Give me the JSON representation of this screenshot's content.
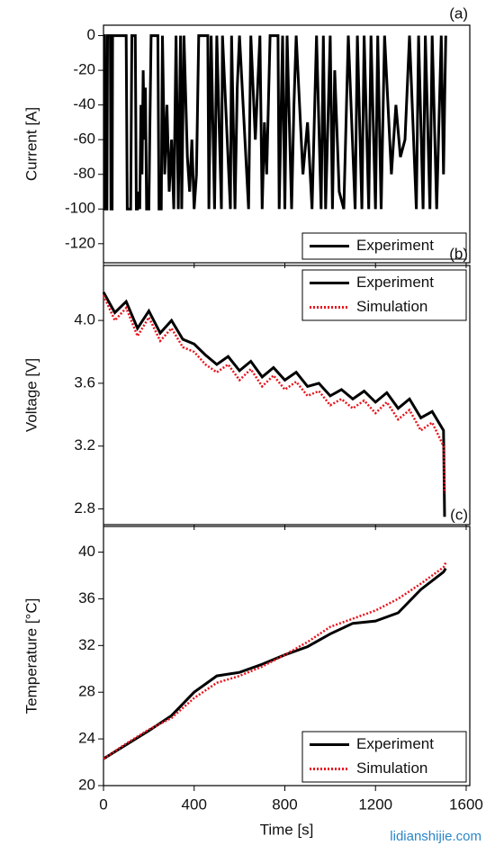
{
  "watermark": "lidianshijie.com",
  "chart_data": [
    {
      "type": "line",
      "panel_label": "(a)",
      "ylabel": "Current [A]",
      "xlim": [
        0,
        1616
      ],
      "xticks": [
        0,
        400,
        800,
        1200,
        1600
      ],
      "ylim": [
        -131,
        6
      ],
      "yticks": [
        0,
        -20,
        -40,
        -60,
        -80,
        -100,
        -120
      ],
      "legend": "lower right",
      "x": [
        0,
        5,
        8,
        15,
        18,
        30,
        33,
        38,
        40,
        100,
        105,
        120,
        125,
        140,
        145,
        150,
        155,
        160,
        165,
        170,
        175,
        180,
        185,
        190,
        200,
        205,
        210,
        240,
        245,
        255,
        260,
        270,
        280,
        290,
        300,
        310,
        320,
        330,
        340,
        345,
        355,
        370,
        380,
        390,
        400,
        410,
        420,
        460,
        465,
        475,
        490,
        500,
        520,
        525,
        560,
        565,
        580,
        590,
        600,
        640,
        650,
        670,
        690,
        700,
        710,
        720,
        735,
        770,
        775,
        790,
        800,
        810,
        830,
        840,
        850,
        880,
        900,
        920,
        940,
        960,
        970,
        980,
        1000,
        1010,
        1020,
        1040,
        1060,
        1080,
        1110,
        1120,
        1140,
        1150,
        1170,
        1180,
        1200,
        1210,
        1225,
        1240,
        1270,
        1290,
        1310,
        1330,
        1350,
        1380,
        1390,
        1410,
        1420,
        1440,
        1450,
        1470,
        1490,
        1500,
        1505,
        1510
      ],
      "series": [
        {
          "name": "Experiment",
          "color": "#000000",
          "style": "solid",
          "values": [
            0,
            0,
            -100,
            -100,
            0,
            0,
            -100,
            -100,
            0,
            0,
            -100,
            -100,
            0,
            0,
            -100,
            -100,
            -90,
            -100,
            -40,
            -80,
            -20,
            -60,
            -30,
            -100,
            -100,
            -50,
            0,
            0,
            -100,
            -100,
            0,
            -80,
            -40,
            -90,
            -60,
            -100,
            0,
            -100,
            0,
            -100,
            0,
            -70,
            -90,
            -60,
            -100,
            -80,
            0,
            0,
            -100,
            0,
            -100,
            0,
            -100,
            0,
            -100,
            0,
            -100,
            -30,
            0,
            -100,
            0,
            -60,
            0,
            -100,
            -50,
            -80,
            0,
            0,
            -100,
            0,
            -100,
            0,
            -100,
            -40,
            0,
            -80,
            -50,
            -100,
            0,
            -100,
            0,
            -100,
            0,
            -100,
            -20,
            -90,
            -100,
            0,
            -100,
            0,
            -100,
            0,
            -100,
            0,
            -100,
            0,
            -100,
            0,
            -80,
            -40,
            -70,
            -60,
            0,
            -100,
            0,
            -100,
            0,
            -100,
            0,
            -100,
            0,
            -80,
            -40,
            0
          ]
        }
      ]
    },
    {
      "type": "line",
      "panel_label": "(b)",
      "ylabel": "Voltage [V]",
      "xlim": [
        0,
        1616
      ],
      "xticks": [
        0,
        400,
        800,
        1200,
        1600
      ],
      "ylim": [
        2.7,
        4.35
      ],
      "yticks": [
        {
          "value": 2.8,
          "label": "2.8"
        },
        {
          "value": 3.2,
          "label": "3.2"
        },
        {
          "value": 3.6,
          "label": "3.6"
        },
        {
          "value": 4.0,
          "label": "4.0"
        }
      ],
      "legend": "upper right",
      "x": [
        0,
        50,
        100,
        150,
        200,
        250,
        300,
        350,
        400,
        450,
        500,
        550,
        600,
        650,
        700,
        750,
        800,
        850,
        900,
        950,
        1000,
        1050,
        1100,
        1150,
        1200,
        1250,
        1300,
        1350,
        1400,
        1450,
        1500,
        1505
      ],
      "series": [
        {
          "name": "Experiment",
          "color": "#000000",
          "style": "solid",
          "values": [
            4.18,
            4.05,
            4.12,
            3.95,
            4.06,
            3.92,
            4.0,
            3.88,
            3.85,
            3.78,
            3.72,
            3.77,
            3.68,
            3.74,
            3.64,
            3.7,
            3.62,
            3.67,
            3.58,
            3.6,
            3.52,
            3.56,
            3.5,
            3.55,
            3.48,
            3.54,
            3.44,
            3.5,
            3.38,
            3.42,
            3.3,
            2.75
          ]
        },
        {
          "name": "Simulation",
          "color": "#e8141c",
          "style": "dotted",
          "values": [
            4.16,
            4.0,
            4.08,
            3.9,
            4.02,
            3.87,
            3.95,
            3.83,
            3.8,
            3.72,
            3.67,
            3.72,
            3.62,
            3.69,
            3.58,
            3.65,
            3.56,
            3.61,
            3.52,
            3.55,
            3.46,
            3.5,
            3.44,
            3.49,
            3.41,
            3.48,
            3.37,
            3.43,
            3.3,
            3.35,
            3.2,
            2.9
          ]
        }
      ]
    },
    {
      "type": "line",
      "panel_label": "(c)",
      "ylabel": "Temperature [°C]",
      "xlabel": "Time [s]",
      "xlim": [
        0,
        1616
      ],
      "xticks": [
        0,
        400,
        800,
        1200,
        1600
      ],
      "ylim": [
        20,
        42.2
      ],
      "yticks": [
        20,
        24,
        28,
        32,
        36,
        40
      ],
      "legend": "lower right",
      "x": [
        0,
        100,
        200,
        300,
        400,
        500,
        600,
        700,
        800,
        900,
        1000,
        1100,
        1200,
        1300,
        1400,
        1500,
        1510
      ],
      "series": [
        {
          "name": "Experiment",
          "color": "#000000",
          "style": "solid",
          "values": [
            22.3,
            23.5,
            24.7,
            26.0,
            28.0,
            29.4,
            29.7,
            30.4,
            31.2,
            31.9,
            33.0,
            33.9,
            34.1,
            34.8,
            36.8,
            38.3,
            38.6
          ]
        },
        {
          "name": "Simulation",
          "color": "#e8141c",
          "style": "dotted",
          "values": [
            22.3,
            23.6,
            24.8,
            25.8,
            27.5,
            28.8,
            29.4,
            30.2,
            31.2,
            32.3,
            33.6,
            34.3,
            35.0,
            36.0,
            37.3,
            38.7,
            39.1
          ]
        }
      ]
    }
  ]
}
